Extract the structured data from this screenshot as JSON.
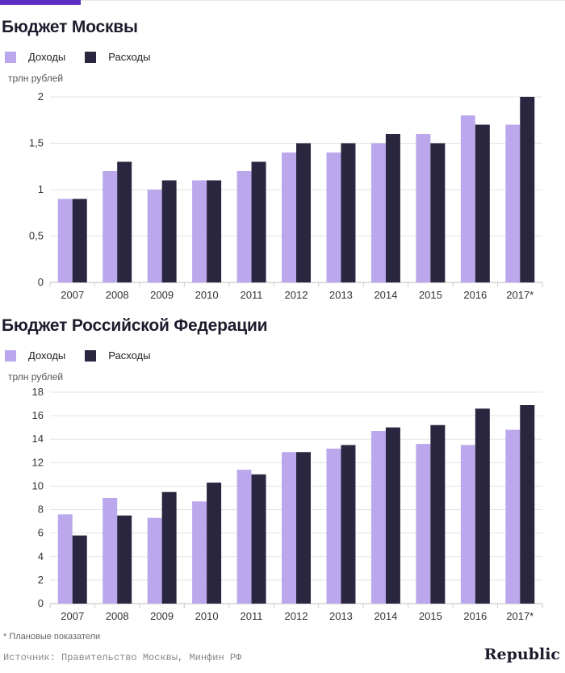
{
  "colors": {
    "income": "#bba8ec",
    "expense": "#2a2640",
    "accent": "#5c2fc2",
    "grid": "#e3e3e3"
  },
  "footnote": "* Плановые показатели",
  "source": "Источник: Правительство Москвы, Минфин РФ",
  "logo": "Republic",
  "chart_data": [
    {
      "type": "bar",
      "title": "Бюджет Москвы",
      "ylabel": "трлн рублей",
      "categories": [
        "2007",
        "2008",
        "2009",
        "2010",
        "2011",
        "2012",
        "2013",
        "2014",
        "2015",
        "2016",
        "2017*"
      ],
      "series": [
        {
          "name": "Доходы",
          "values": [
            0.9,
            1.2,
            1.0,
            1.1,
            1.2,
            1.4,
            1.4,
            1.5,
            1.6,
            1.8,
            1.7
          ]
        },
        {
          "name": "Расходы",
          "values": [
            0.9,
            1.3,
            1.1,
            1.1,
            1.3,
            1.5,
            1.5,
            1.6,
            1.5,
            1.7,
            2.0
          ]
        }
      ],
      "ylim": [
        0,
        2
      ],
      "yticks": [
        0,
        0.5,
        1,
        1.5,
        2
      ],
      "ytick_labels": [
        "0",
        "0,5",
        "1",
        "1,5",
        "2"
      ],
      "grid": true,
      "legend_position": "top-left"
    },
    {
      "type": "bar",
      "title": "Бюджет Российской Федерации",
      "ylabel": "трлн рублей",
      "categories": [
        "2007",
        "2008",
        "2009",
        "2010",
        "2011",
        "2012",
        "2013",
        "2014",
        "2015",
        "2016",
        "2017*"
      ],
      "series": [
        {
          "name": "Доходы",
          "values": [
            7.6,
            9.0,
            7.3,
            8.7,
            11.4,
            12.9,
            13.2,
            14.7,
            13.6,
            13.5,
            14.8
          ]
        },
        {
          "name": "Расходы",
          "values": [
            5.8,
            7.5,
            9.5,
            10.3,
            11.0,
            12.9,
            13.5,
            15.0,
            15.2,
            16.6,
            16.9
          ]
        }
      ],
      "ylim": [
        0,
        18
      ],
      "yticks": [
        0,
        2,
        4,
        6,
        8,
        10,
        12,
        14,
        16,
        18
      ],
      "ytick_labels": [
        "0",
        "2",
        "4",
        "6",
        "8",
        "10",
        "12",
        "14",
        "16",
        "18"
      ],
      "grid": true,
      "legend_position": "top-left"
    }
  ]
}
